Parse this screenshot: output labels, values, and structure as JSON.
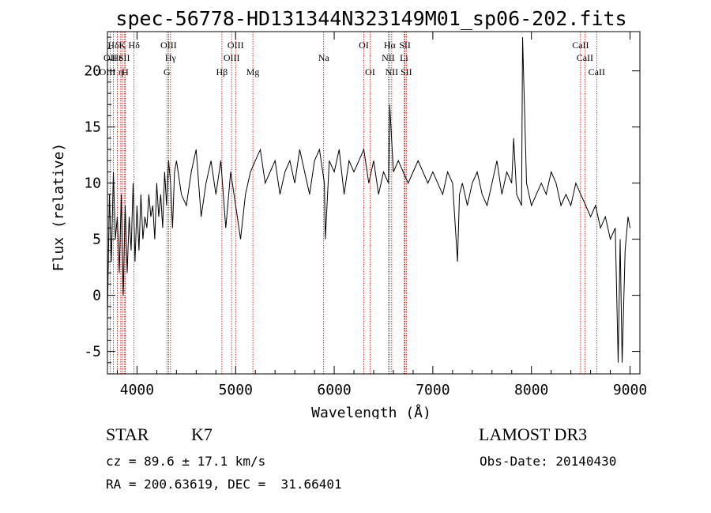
{
  "chart_data": {
    "type": "line",
    "title": "spec-56778-HD131344N323149M01_sp06-202.fits",
    "xlabel": "Wavelength (Å)",
    "ylabel": "Flux (relative)",
    "xlim": [
      3700,
      9100
    ],
    "ylim": [
      -7,
      23.5
    ],
    "xticks": [
      4000,
      5000,
      6000,
      7000,
      8000,
      9000
    ],
    "yticks": [
      -5,
      0,
      5,
      10,
      15,
      20
    ],
    "series": [
      {
        "name": "flux",
        "x": [
          3700,
          3720,
          3740,
          3760,
          3780,
          3800,
          3820,
          3840,
          3860,
          3880,
          3900,
          3920,
          3940,
          3960,
          3980,
          4000,
          4020,
          4040,
          4060,
          4080,
          4100,
          4120,
          4140,
          4160,
          4180,
          4200,
          4220,
          4240,
          4260,
          4280,
          4300,
          4320,
          4340,
          4360,
          4380,
          4400,
          4450,
          4500,
          4550,
          4600,
          4650,
          4700,
          4750,
          4800,
          4850,
          4900,
          4950,
          5000,
          5050,
          5100,
          5150,
          5200,
          5250,
          5300,
          5350,
          5400,
          5450,
          5500,
          5550,
          5600,
          5650,
          5700,
          5750,
          5800,
          5850,
          5900,
          5910,
          5950,
          6000,
          6050,
          6100,
          6150,
          6200,
          6250,
          6300,
          6350,
          6400,
          6450,
          6500,
          6550,
          6563,
          6600,
          6650,
          6700,
          6750,
          6800,
          6850,
          6900,
          6950,
          7000,
          7050,
          7100,
          7150,
          7200,
          7250,
          7270,
          7300,
          7350,
          7400,
          7450,
          7500,
          7550,
          7600,
          7650,
          7700,
          7750,
          7800,
          7820,
          7850,
          7900,
          7910,
          7950,
          8000,
          8050,
          8100,
          8150,
          8200,
          8250,
          8300,
          8350,
          8400,
          8450,
          8500,
          8550,
          8600,
          8650,
          8700,
          8750,
          8800,
          8850,
          8880,
          8900,
          8920,
          8950,
          8980,
          9000
        ],
        "values": [
          -2,
          9,
          3,
          11,
          5,
          7,
          2,
          9,
          0,
          8,
          2,
          7,
          4,
          10,
          3,
          8,
          4,
          9,
          5,
          7,
          6,
          9,
          7,
          8,
          5,
          10,
          7,
          9,
          6,
          11,
          8,
          12,
          10,
          6,
          11,
          12,
          9,
          8,
          11,
          13,
          7,
          10,
          12,
          9,
          12,
          6,
          11,
          8,
          5,
          9,
          11,
          12,
          13,
          10,
          11,
          12,
          9,
          11,
          12,
          10,
          13,
          11,
          9,
          12,
          13,
          10,
          5,
          12,
          11,
          13,
          9,
          12,
          11,
          12,
          13,
          10,
          12,
          9,
          11,
          10,
          17,
          11,
          12,
          11,
          10,
          11,
          12,
          11,
          10,
          11,
          10,
          9,
          11,
          10,
          3,
          9,
          10,
          8,
          10,
          11,
          9,
          8,
          10,
          12,
          9,
          11,
          10,
          14,
          9,
          8,
          23,
          10,
          8,
          9,
          10,
          9,
          11,
          10,
          8,
          9,
          8,
          10,
          9,
          8,
          7,
          8,
          6,
          7,
          5,
          6,
          -6,
          5,
          -6,
          4,
          7,
          6
        ]
      }
    ],
    "spectral_lines": [
      {
        "label": "Hδ",
        "x": 3760,
        "row": 0
      },
      {
        "label": "K",
        "x": 3850,
        "row": 0
      },
      {
        "label": "Hδ",
        "x": 3970,
        "row": 0
      },
      {
        "label": "OIII",
        "x": 4320,
        "row": 0
      },
      {
        "label": "OIII",
        "x": 5000,
        "row": 0
      },
      {
        "label": "OI",
        "x": 6300,
        "row": 0
      },
      {
        "label": "Hα",
        "x": 6563,
        "row": 0
      },
      {
        "label": "SII",
        "x": 6717,
        "row": 0
      },
      {
        "label": "CaII",
        "x": 8498,
        "row": 0
      },
      {
        "label": "OII",
        "x": 3727,
        "row": 1
      },
      {
        "label": "He",
        "x": 3800,
        "row": 1
      },
      {
        "label": "SII",
        "x": 3870,
        "row": 1
      },
      {
        "label": "Hγ",
        "x": 4340,
        "row": 1
      },
      {
        "label": "OIII",
        "x": 4959,
        "row": 1
      },
      {
        "label": "Na",
        "x": 5893,
        "row": 1
      },
      {
        "label": "NII",
        "x": 6548,
        "row": 1
      },
      {
        "label": "Li",
        "x": 6708,
        "row": 1
      },
      {
        "label": "CaII",
        "x": 8542,
        "row": 1
      },
      {
        "label": "OIII",
        "x": 3700,
        "row": 2
      },
      {
        "label": "η",
        "x": 3835,
        "row": 2
      },
      {
        "label": "H",
        "x": 3880,
        "row": 2
      },
      {
        "label": "G",
        "x": 4304,
        "row": 2
      },
      {
        "label": "Hβ",
        "x": 4861,
        "row": 2
      },
      {
        "label": "Mg",
        "x": 5175,
        "row": 2
      },
      {
        "label": "OI",
        "x": 6364,
        "row": 2
      },
      {
        "label": "NII",
        "x": 6583,
        "row": 2
      },
      {
        "label": "SII",
        "x": 6731,
        "row": 2
      },
      {
        "label": "CaII",
        "x": 8662,
        "row": 2
      }
    ]
  },
  "info": {
    "class": "STAR",
    "subclass": "K7",
    "survey": "LAMOST DR3",
    "cz": "cz = 89.6 ± 17.1 km/s",
    "obs_date": "Obs-Date: 20140430",
    "coords": "RA = 200.63619, DEC =  31.66401"
  },
  "colors": {
    "line": "#000000",
    "marker": "#cc0000"
  }
}
